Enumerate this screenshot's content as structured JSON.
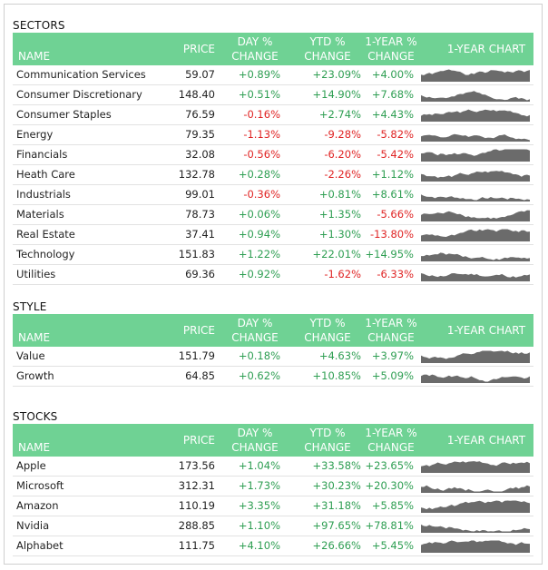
{
  "headers": {
    "name": "NAME",
    "price": "PRICE",
    "day1": "DAY %",
    "day2": "CHANGE",
    "ytd1": "YTD %",
    "ytd2": "CHANGE",
    "yr1": "1-YEAR %",
    "yr2": "CHANGE",
    "chart": "1-YEAR CHART"
  },
  "colors": {
    "header_bg": "#6fd294",
    "positive": "#2e9e52",
    "negative": "#e02424",
    "spark": "#6b6b6b"
  },
  "sectors": {
    "title": "SECTORS",
    "rows": [
      {
        "name": "Communication Services",
        "price": "59.07",
        "day": "+0.89%",
        "ytd": "+23.09%",
        "yr": "+4.00%"
      },
      {
        "name": "Consumer Discretionary",
        "price": "148.40",
        "day": "+0.51%",
        "ytd": "+14.90%",
        "yr": "+7.68%"
      },
      {
        "name": "Consumer Staples",
        "price": "76.59",
        "day": "-0.16%",
        "ytd": "+2.74%",
        "yr": "+4.43%"
      },
      {
        "name": "Energy",
        "price": "79.35",
        "day": "-1.13%",
        "ytd": "-9.28%",
        "yr": "-5.82%"
      },
      {
        "name": "Financials",
        "price": "32.08",
        "day": "-0.56%",
        "ytd": "-6.20%",
        "yr": "-5.42%"
      },
      {
        "name": "Heath Care",
        "price": "132.78",
        "day": "+0.28%",
        "ytd": "-2.26%",
        "yr": "+1.12%"
      },
      {
        "name": "Industrials",
        "price": "99.01",
        "day": "-0.36%",
        "ytd": "+0.81%",
        "yr": "+8.61%"
      },
      {
        "name": "Materials",
        "price": "78.73",
        "day": "+0.06%",
        "ytd": "+1.35%",
        "yr": "-5.66%"
      },
      {
        "name": "Real Estate",
        "price": "37.41",
        "day": "+0.94%",
        "ytd": "+1.30%",
        "yr": "-13.80%"
      },
      {
        "name": "Technology",
        "price": "151.83",
        "day": "+1.22%",
        "ytd": "+22.01%",
        "yr": "+14.95%"
      },
      {
        "name": "Utilities",
        "price": "69.36",
        "day": "+0.92%",
        "ytd": "-1.62%",
        "yr": "-6.33%"
      }
    ]
  },
  "style": {
    "title": "STYLE",
    "rows": [
      {
        "name": "Value",
        "price": "151.79",
        "day": "+0.18%",
        "ytd": "+4.63%",
        "yr": "+3.97%"
      },
      {
        "name": "Growth",
        "price": "64.85",
        "day": "+0.62%",
        "ytd": "+10.85%",
        "yr": "+5.09%"
      }
    ]
  },
  "stocks": {
    "title": "STOCKS",
    "rows": [
      {
        "name": "Apple",
        "price": "173.56",
        "day": "+1.04%",
        "ytd": "+33.58%",
        "yr": "+23.65%"
      },
      {
        "name": "Microsoft",
        "price": "312.31",
        "day": "+1.73%",
        "ytd": "+30.23%",
        "yr": "+20.30%"
      },
      {
        "name": "Amazon",
        "price": "110.19",
        "day": "+3.35%",
        "ytd": "+31.18%",
        "yr": "+5.85%"
      },
      {
        "name": "Nvidia",
        "price": "288.85",
        "day": "+1.10%",
        "ytd": "+97.65%",
        "yr": "+78.81%"
      },
      {
        "name": "Alphabet",
        "price": "111.75",
        "day": "+4.10%",
        "ytd": "+26.66%",
        "yr": "+5.45%"
      }
    ]
  }
}
